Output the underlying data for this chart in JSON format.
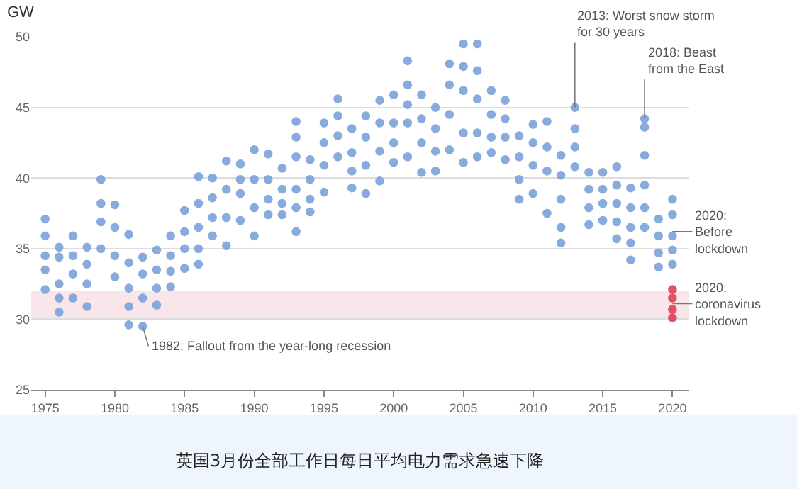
{
  "chart_data": {
    "type": "scatter",
    "title": "英国3月份全部工作日每日平均电力需求急速下降",
    "ylabel": "GW",
    "xlim": [
      1974,
      2021.2
    ],
    "xticks": [
      1975,
      1980,
      1985,
      1990,
      1995,
      2000,
      2005,
      2010,
      2015,
      2020
    ],
    "ylim": [
      25,
      50
    ],
    "yticks": [
      25,
      30,
      35,
      40,
      45,
      50
    ],
    "grid": "y",
    "marker": "circle",
    "bands": [
      {
        "axis": "y",
        "from": 30,
        "to": 32,
        "color": "#f9e6ea"
      }
    ],
    "annotations": [
      {
        "text": "1982: Fallout from the year-long recession",
        "x": 1982,
        "y": 29.5
      },
      {
        "text": "2013: Worst snow storm\nfor 30 years",
        "x": 2013,
        "y": 45.0
      },
      {
        "text": "2018: Beast\nfrom the East",
        "x": 2018,
        "y": 44.2
      },
      {
        "text": "2020:\nBefore\nlockdown",
        "x": 2020,
        "y": 36.2
      },
      {
        "text": "2020:\ncoronavirus\nlockdown",
        "x": 2020,
        "y": 31.1
      }
    ],
    "series": [
      {
        "color": "#7ba3d9",
        "x": [
          1975,
          1975,
          1975,
          1975,
          1975,
          1976,
          1976,
          1976,
          1976,
          1976,
          1977,
          1977,
          1977,
          1977,
          1978,
          1978,
          1978,
          1978,
          1979,
          1979,
          1979,
          1979,
          1980,
          1980,
          1980,
          1980,
          1981,
          1981,
          1981,
          1981,
          1981,
          1982,
          1982,
          1982,
          1982,
          1983,
          1983,
          1983,
          1983,
          1984,
          1984,
          1984,
          1984,
          1985,
          1985,
          1985,
          1985,
          1986,
          1986,
          1986,
          1986,
          1986,
          1987,
          1987,
          1987,
          1987,
          1988,
          1988,
          1988,
          1988,
          1989,
          1989,
          1989,
          1989,
          1990,
          1990,
          1990,
          1990,
          1991,
          1991,
          1991,
          1991,
          1992,
          1992,
          1992,
          1992,
          1993,
          1993,
          1993,
          1993,
          1993,
          1993,
          1994,
          1994,
          1994,
          1994,
          1995,
          1995,
          1995,
          1995,
          1996,
          1996,
          1996,
          1996,
          1997,
          1997,
          1997,
          1997,
          1998,
          1998,
          1998,
          1998,
          1999,
          1999,
          1999,
          1999,
          2000,
          2000,
          2000,
          2000,
          2001,
          2001,
          2001,
          2001,
          2001,
          2002,
          2002,
          2002,
          2002,
          2003,
          2003,
          2003,
          2003,
          2004,
          2004,
          2004,
          2004,
          2005,
          2005,
          2005,
          2005,
          2005,
          2006,
          2006,
          2006,
          2006,
          2006,
          2007,
          2007,
          2007,
          2007,
          2008,
          2008,
          2008,
          2008,
          2009,
          2009,
          2009,
          2009,
          2010,
          2010,
          2010,
          2010,
          2011,
          2011,
          2011,
          2011,
          2012,
          2012,
          2012,
          2012,
          2012,
          2013,
          2013,
          2013,
          2013,
          2014,
          2014,
          2014,
          2014,
          2015,
          2015,
          2015,
          2015,
          2016,
          2016,
          2016,
          2016,
          2016,
          2017,
          2017,
          2017,
          2017,
          2017,
          2018,
          2018,
          2018,
          2018,
          2018,
          2018,
          2019,
          2019,
          2019,
          2019,
          2020,
          2020,
          2020,
          2020,
          2020
        ],
        "values": [
          37.1,
          35.9,
          34.5,
          33.5,
          32.1,
          35.1,
          34.4,
          32.5,
          31.5,
          30.5,
          35.9,
          34.5,
          33.2,
          31.5,
          35.1,
          33.9,
          32.5,
          30.9,
          39.9,
          38.2,
          36.9,
          35.0,
          38.1,
          36.5,
          34.5,
          33.0,
          36.0,
          34.0,
          32.2,
          30.9,
          29.6,
          34.4,
          33.2,
          31.5,
          29.5,
          34.9,
          33.5,
          32.2,
          31.0,
          35.9,
          34.5,
          33.4,
          32.3,
          37.7,
          36.2,
          35.0,
          33.6,
          40.1,
          38.2,
          36.5,
          35.0,
          33.9,
          40.0,
          38.6,
          37.2,
          35.9,
          41.2,
          39.2,
          37.2,
          35.2,
          41.0,
          39.9,
          38.9,
          37.0,
          42.0,
          39.9,
          37.9,
          35.9,
          41.7,
          39.9,
          38.5,
          37.4,
          40.7,
          39.2,
          38.2,
          37.4,
          44.0,
          42.9,
          41.5,
          39.2,
          37.9,
          36.2,
          41.3,
          39.9,
          38.5,
          37.6,
          43.9,
          42.5,
          40.9,
          39.0,
          45.6,
          44.4,
          43.0,
          41.5,
          43.5,
          41.8,
          40.5,
          39.3,
          44.4,
          42.9,
          40.9,
          38.9,
          45.5,
          43.9,
          41.9,
          39.8,
          45.9,
          43.9,
          42.5,
          41.1,
          48.3,
          46.6,
          45.2,
          43.9,
          41.5,
          45.9,
          44.2,
          42.5,
          40.4,
          45.0,
          43.5,
          41.9,
          40.5,
          48.1,
          46.6,
          44.5,
          42.0,
          49.5,
          47.9,
          46.2,
          43.2,
          41.1,
          49.5,
          47.6,
          45.6,
          43.2,
          41.5,
          46.2,
          44.5,
          42.9,
          41.8,
          45.5,
          44.2,
          42.9,
          41.3,
          43.0,
          41.5,
          39.9,
          38.5,
          43.8,
          42.5,
          40.9,
          38.9,
          44.0,
          42.2,
          40.5,
          37.5,
          41.6,
          40.2,
          38.5,
          36.5,
          35.4,
          45.0,
          43.5,
          42.2,
          40.8,
          40.4,
          39.2,
          37.9,
          36.7,
          40.4,
          39.2,
          38.2,
          37.0,
          40.8,
          39.5,
          38.2,
          36.9,
          35.7,
          39.3,
          37.9,
          36.5,
          35.4,
          34.2,
          44.2,
          43.6,
          41.6,
          39.5,
          37.9,
          36.5,
          37.1,
          35.9,
          34.7,
          33.7,
          38.5,
          37.4,
          35.9,
          34.9,
          33.9
        ]
      },
      {
        "color": "#e0405a",
        "x": [
          2020,
          2020,
          2020,
          2020
        ],
        "values": [
          32.1,
          31.5,
          30.7,
          30.1
        ]
      }
    ]
  }
}
